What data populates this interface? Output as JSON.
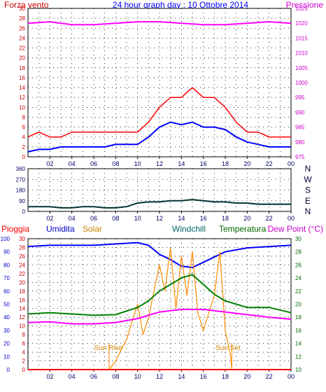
{
  "colors": {
    "wind": "#ff0000",
    "gust": "#0000ff",
    "pressure": "#ff00ff",
    "direction": "#003333",
    "rain": "#ff0000",
    "humidity": "#0000ff",
    "solar": "#ff8c00",
    "windchill": "#ff00ff",
    "temperature": "#008000",
    "dewpoint": "#ff00ff",
    "grid": "#000000",
    "title": "#0000ff"
  },
  "chart_data": [
    {
      "type": "line",
      "title": "24 hour graph day : 10 Ottobre 2014",
      "left_label": "Forza vento",
      "right_label": "Pressione",
      "x_ticks": [
        "02",
        "04",
        "06",
        "08",
        "10",
        "12",
        "14",
        "16",
        "18",
        "20",
        "22",
        "00"
      ],
      "xlim": [
        0,
        24
      ],
      "y_left_ticks": [
        0,
        2,
        4,
        6,
        8,
        10,
        12,
        14,
        16,
        18,
        20,
        22,
        24,
        26,
        28,
        30
      ],
      "ylim_left": [
        0,
        30
      ],
      "y_right_ticks": [
        975,
        980,
        985,
        990,
        995,
        1000,
        1005,
        1010,
        1015,
        1020,
        1025
      ],
      "ylim_right": [
        975,
        1025
      ],
      "series": [
        {
          "key": "gust",
          "axis": "left",
          "color": "#ff0000",
          "x": [
            0,
            1,
            2,
            3,
            4,
            5,
            6,
            7,
            8,
            9,
            10,
            11,
            12,
            13,
            14,
            15,
            16,
            17,
            18,
            19,
            20,
            21,
            22,
            23,
            24
          ],
          "y": [
            4,
            5,
            4,
            4,
            5,
            5,
            5,
            5,
            5,
            5,
            5,
            7,
            10,
            12,
            12,
            14,
            12,
            12,
            10,
            7,
            5,
            5,
            4,
            4,
            4
          ]
        },
        {
          "key": "wind",
          "axis": "left",
          "color": "#0000ff",
          "x": [
            0,
            1,
            2,
            3,
            4,
            5,
            6,
            7,
            8,
            9,
            10,
            11,
            12,
            13,
            14,
            15,
            16,
            17,
            18,
            19,
            20,
            21,
            22,
            23,
            24
          ],
          "y": [
            1,
            1.5,
            1.5,
            2,
            2,
            2,
            2,
            2,
            2.5,
            2.5,
            2.5,
            4,
            6,
            7,
            6.5,
            7,
            6,
            6,
            5.5,
            4,
            3,
            2.5,
            2,
            2,
            2
          ]
        },
        {
          "key": "pressure",
          "axis": "right",
          "color": "#ff00ff",
          "x": [
            0,
            2,
            4,
            6,
            8,
            10,
            12,
            14,
            16,
            18,
            20,
            22,
            24
          ],
          "y": [
            1020,
            1020.5,
            1019.5,
            1019.5,
            1020,
            1020.5,
            1020.5,
            1020,
            1019.5,
            1019.5,
            1020,
            1020.5,
            1020
          ]
        }
      ]
    },
    {
      "type": "line",
      "x_ticks": [
        "02",
        "04",
        "06",
        "08",
        "10",
        "12",
        "14",
        "16",
        "18",
        "20",
        "22",
        "00"
      ],
      "xlim": [
        0,
        24
      ],
      "y_left_ticks": [
        0,
        90,
        180,
        270,
        360
      ],
      "ylim": [
        0,
        360
      ],
      "right_labels": [
        "N",
        "W",
        "S",
        "E",
        "N"
      ],
      "series": [
        {
          "key": "direction",
          "color": "#003333",
          "x": [
            0,
            1,
            2,
            3,
            4,
            5,
            6,
            7,
            8,
            9,
            10,
            11,
            12,
            13,
            14,
            15,
            16,
            17,
            18,
            19,
            20,
            21,
            22,
            23,
            24
          ],
          "y": [
            40,
            40,
            40,
            30,
            30,
            40,
            40,
            30,
            30,
            40,
            70,
            80,
            80,
            90,
            90,
            100,
            90,
            80,
            80,
            70,
            70,
            60,
            60,
            60,
            60
          ]
        }
      ]
    },
    {
      "type": "line",
      "labels": {
        "rain": "Pioggia",
        "humidity": "Umidita",
        "solar": "Solar",
        "windchill": "Windchill",
        "temperature": "Temperatura",
        "dewpoint": "Dew Point (°C)",
        "sunrise": "Sun Rise",
        "sunset": "Sun Set"
      },
      "x_ticks": [
        "02",
        "04",
        "06",
        "08",
        "10",
        "12",
        "14",
        "16",
        "18",
        "20",
        "22",
        "00"
      ],
      "xlim": [
        0,
        24
      ],
      "humidity_ticks": [
        0,
        10,
        20,
        30,
        40,
        50,
        60,
        70,
        80,
        90,
        100
      ],
      "ylim_humidity": [
        0,
        100
      ],
      "rain_ticks": [
        0,
        2,
        4,
        6,
        8,
        10,
        12,
        14,
        16,
        18,
        20,
        22,
        24,
        26,
        28,
        30
      ],
      "ylim_rain": [
        0,
        30
      ],
      "temp_ticks": [
        10,
        12,
        14,
        16,
        18,
        20,
        22,
        24,
        26,
        28,
        30
      ],
      "ylim_temp": [
        10,
        30
      ],
      "sunrise_hour": 7.4,
      "sunset_hour": 18.6,
      "series": [
        {
          "key": "rain",
          "axis": "rain",
          "color": "#ff0000",
          "x": [
            0,
            24
          ],
          "y": [
            0,
            0
          ]
        },
        {
          "key": "humidity",
          "axis": "humidity",
          "color": "#0000ff",
          "x": [
            0,
            2,
            4,
            6,
            8,
            10,
            11,
            12,
            13,
            14,
            15,
            16,
            17,
            18,
            20,
            22,
            24
          ],
          "y": [
            94,
            95,
            95,
            95,
            96,
            97,
            95,
            88,
            84,
            79,
            78,
            82,
            86,
            90,
            93,
            94,
            95
          ]
        },
        {
          "key": "solar",
          "axis": "rain",
          "color": "#ff8c00",
          "x": [
            7.4,
            8,
            9,
            10,
            10.5,
            11,
            12,
            12.5,
            13,
            13.5,
            14,
            14.5,
            15,
            15.5,
            16,
            17,
            17.5,
            18,
            18.5,
            18.6
          ],
          "y": [
            0,
            2,
            7,
            15,
            8,
            12,
            24,
            18,
            28,
            14,
            26,
            17,
            27,
            13,
            9,
            17,
            27,
            9,
            3,
            0
          ]
        },
        {
          "key": "temperature",
          "axis": "temp",
          "color": "#008000",
          "x": [
            0,
            2,
            4,
            6,
            8,
            10,
            11,
            12,
            13,
            14,
            15,
            16,
            17,
            18,
            20,
            22,
            24
          ],
          "y": [
            18.5,
            18.7,
            18.5,
            18.3,
            18.4,
            19.5,
            20.5,
            22,
            23,
            24,
            24.5,
            23,
            21.5,
            20.5,
            19.5,
            19.5,
            18.7
          ]
        },
        {
          "key": "dewpoint",
          "axis": "temp",
          "color": "#ff00ff",
          "x": [
            0,
            2,
            4,
            6,
            8,
            10,
            12,
            14,
            16,
            18,
            20,
            22,
            24
          ],
          "y": [
            17.2,
            17.3,
            17,
            17,
            17.2,
            17.8,
            18.8,
            19.2,
            19.2,
            18.8,
            18.4,
            18,
            17.7
          ]
        }
      ]
    }
  ]
}
